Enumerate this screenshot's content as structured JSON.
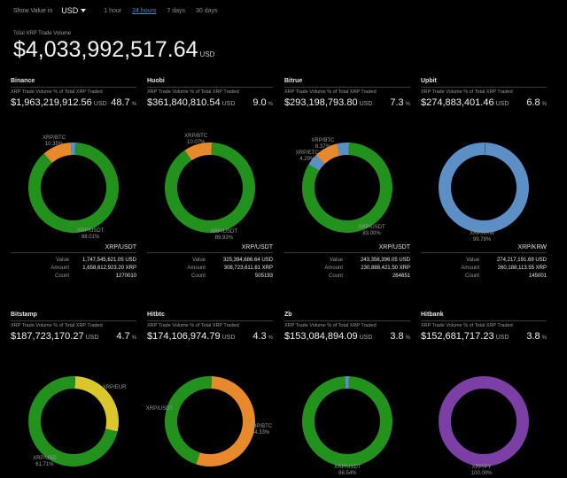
{
  "topbar": {
    "show_value_label": "Show Value in",
    "currency": "USD",
    "ranges": [
      "1 hour",
      "24 hours",
      "7 days",
      "30 days"
    ],
    "active_range": "24 hours"
  },
  "total": {
    "label": "Total XRP Trade Volume",
    "value": "$4,033,992,517.64",
    "unit": "USD"
  },
  "colors": {
    "green": "#22921d",
    "orange": "#e8892c",
    "blue": "#5b8fc6",
    "yellow": "#d9c72b",
    "purple": "#7b3fa5"
  },
  "exchanges": [
    {
      "name": "Binance",
      "sub": "XRP Trade Volume  % of Total XRP Traded",
      "volume": "$1,963,219,912.56",
      "unit": "USD",
      "pct": "48.7",
      "pct_sign": "%",
      "segments": [
        {
          "label": "XRP/USDT",
          "pct": "88.01%",
          "fraction": 0.8801,
          "color": "green"
        },
        {
          "label": "XRP/BTC",
          "pct": "10.35%",
          "fraction": 0.1035,
          "color": "orange"
        },
        {
          "label": "",
          "pct": "",
          "fraction": 0.0164,
          "color": "blue"
        }
      ],
      "details": {
        "pair": "XRP/USDT",
        "value_label": "Value",
        "value": "1,747,545,621.05 USD",
        "amount_label": "Amount",
        "amount": "1,658,612,923.20 XRP",
        "count_label": "Count",
        "count": "1270010"
      }
    },
    {
      "name": "Huobi",
      "sub": "XRP Trade Volume  % of Total XRP Traded",
      "volume": "$361,840,810.54",
      "unit": "USD",
      "pct": "9.0",
      "pct_sign": "%",
      "segments": [
        {
          "label": "XRP/USDT",
          "pct": "89.93%",
          "fraction": 0.8993,
          "color": "green"
        },
        {
          "label": "XRP/BTC",
          "pct": "10.07%",
          "fraction": 0.1007,
          "color": "orange"
        }
      ],
      "details": {
        "pair": "XRP/USDT",
        "value_label": "Value",
        "value": "325,394,686.64 USD",
        "amount_label": "Amount",
        "amount": "308,723,611.61 XRP",
        "count_label": "Count",
        "count": "505193"
      }
    },
    {
      "name": "Bitrue",
      "sub": "XRP Trade Volume  % of Total XRP Traded",
      "volume": "$293,198,793.80",
      "unit": "USD",
      "pct": "7.3",
      "pct_sign": "%",
      "segments": [
        {
          "label": "XRP/USDT",
          "pct": "83.00%",
          "fraction": 0.83,
          "color": "green"
        },
        {
          "label": "XRP/ETC",
          "pct": "4.29%",
          "fraction": 0.0429,
          "color": "blue"
        },
        {
          "label": "XRP/BTC",
          "pct": "8.37%",
          "fraction": 0.0837,
          "color": "orange"
        },
        {
          "label": "",
          "pct": "",
          "fraction": 0.0434,
          "color": "blue"
        }
      ],
      "details": {
        "pair": "XRP/USDT",
        "value_label": "Value",
        "value": "243,356,396.05 USD",
        "amount_label": "Amount",
        "amount": "230,888,421.50 XRP",
        "count_label": "Count",
        "count": "264651"
      }
    },
    {
      "name": "Upbit",
      "sub": "XRP Trade Volume  % of Total XRP Traded",
      "volume": "$274,883,401.46",
      "unit": "USD",
      "pct": "6.8",
      "pct_sign": "%",
      "segments": [
        {
          "label": "XRP/KRW",
          "pct": "99.78%",
          "fraction": 0.9978,
          "color": "blue"
        },
        {
          "label": "",
          "pct": "",
          "fraction": 0.0022,
          "color": "green"
        }
      ],
      "details": {
        "pair": "XRP/KRW",
        "value_label": "Value",
        "value": "274,217,191.69 USD",
        "amount_label": "Amount",
        "amount": "260,188,113.55 XRP",
        "count_label": "Count",
        "count": "145001"
      }
    },
    {
      "name": "Bitstamp",
      "sub": "XRP Trade Volume  % of Total XRP Traded",
      "volume": "$187,723,170.27",
      "unit": "USD",
      "pct": "4.7",
      "pct_sign": "%",
      "segments": [
        {
          "label": "XRP/EUR",
          "pct": "",
          "fraction": 0.28,
          "color": "yellow"
        },
        {
          "label": "XRP/USD",
          "pct": "61.71%",
          "fraction": 0.6171,
          "color": "green"
        },
        {
          "label": "",
          "pct": "",
          "fraction": 0.1029,
          "color": "green"
        }
      ],
      "details": null
    },
    {
      "name": "Hitbtc",
      "sub": "XRP Trade Volume  % of Total XRP Traded",
      "volume": "$174,106,974.79",
      "unit": "USD",
      "pct": "4.3",
      "pct_sign": "%",
      "segments": [
        {
          "label": "XRP/BTC",
          "pct": "54.33%",
          "fraction": 0.5433,
          "color": "orange"
        },
        {
          "label": "XRP/USDT",
          "pct": "",
          "fraction": 0.4567,
          "color": "green"
        }
      ],
      "details": null
    },
    {
      "name": "Zb",
      "sub": "XRP Trade Volume  % of Total XRP Traded",
      "volume": "$153,084,894.09",
      "unit": "USD",
      "pct": "3.8",
      "pct_sign": "%",
      "segments": [
        {
          "label": "XRP/USDT",
          "pct": "98.54%",
          "fraction": 0.9854,
          "color": "green"
        },
        {
          "label": "",
          "pct": "",
          "fraction": 0.0146,
          "color": "blue"
        }
      ],
      "details": null
    },
    {
      "name": "Hitbank",
      "sub": "XRP Trade Volume  % of Total XRP Traded",
      "volume": "$152,681,717.23",
      "unit": "USD",
      "pct": "3.8",
      "pct_sign": "%",
      "segments": [
        {
          "label": "XRP/PY",
          "pct": "100.00%",
          "fraction": 1.0,
          "color": "purple"
        }
      ],
      "details": null
    }
  ]
}
